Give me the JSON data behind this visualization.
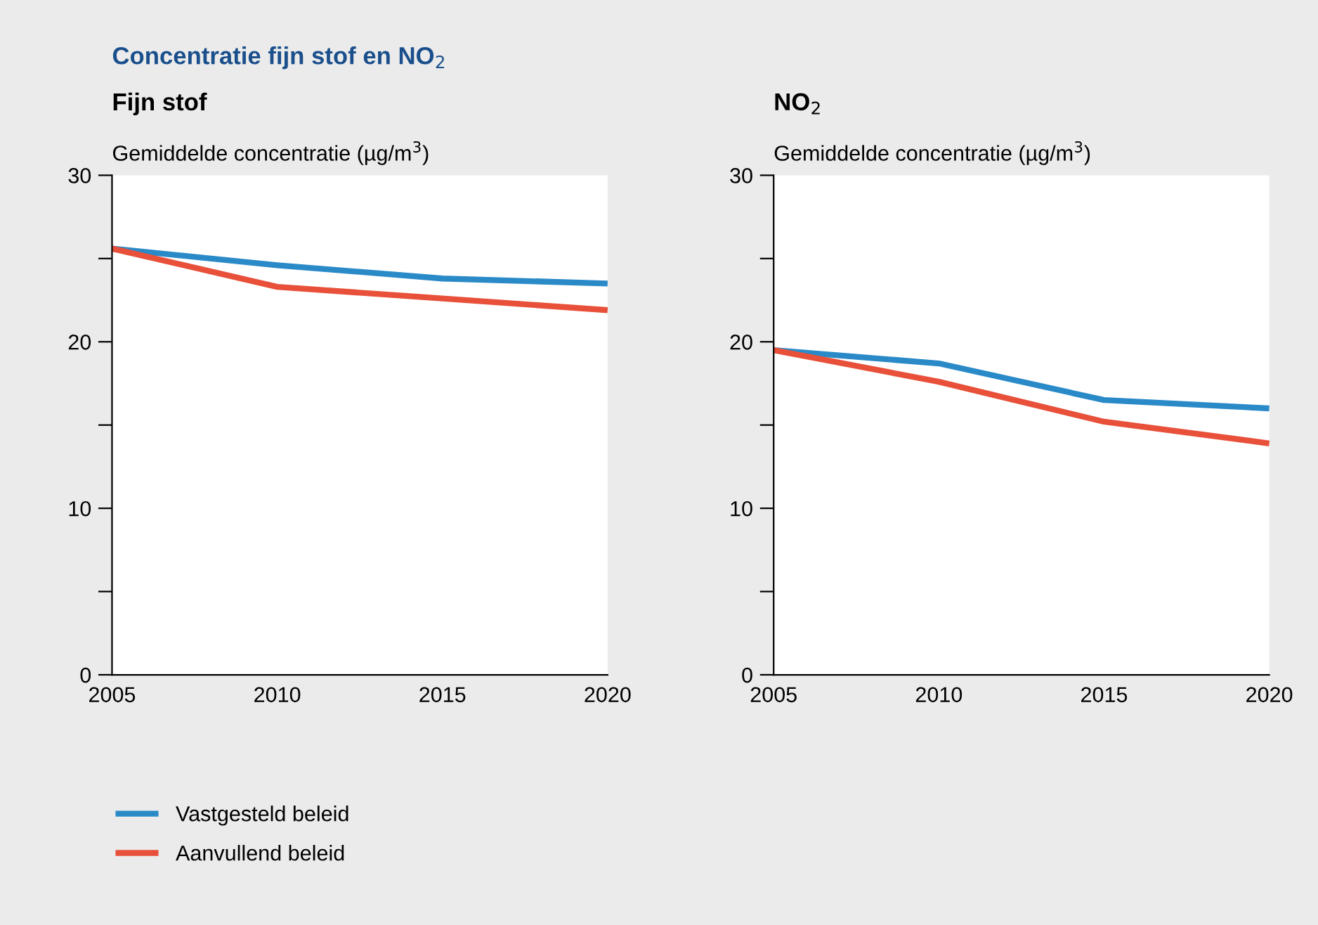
{
  "chart_data": [
    {
      "type": "line",
      "title": "Concentratie fijn stof en NO$_{2}$",
      "subtitle": "Fijn stof",
      "ylabel": "Gemiddelde concentratie (µg/m$^{3}$)",
      "x": [
        2005,
        2010,
        2015,
        2020
      ],
      "series": [
        {
          "name": "Vastgesteld beleid",
          "color": "#2a8ac8",
          "values": [
            25.6,
            24.6,
            23.8,
            23.5
          ]
        },
        {
          "name": "Aanvullend beleid",
          "color": "#e8503a",
          "values": [
            25.6,
            23.3,
            22.6,
            21.9
          ]
        }
      ],
      "xlim": [
        2005,
        2020
      ],
      "xticks": [
        2005,
        2010,
        2015,
        2020
      ],
      "ylim": [
        0,
        30
      ],
      "yticks": [
        0,
        {
          "value": 5,
          "label": null
        },
        10,
        {
          "value": 15,
          "label": null
        },
        20,
        {
          "value": 25,
          "label": null
        },
        30
      ],
      "grid": false,
      "legend": "bottom",
      "marker": "none",
      "line_style": "solid"
    },
    {
      "type": "line",
      "subtitle": "NO$_{2}$",
      "ylabel": "Gemiddelde concentratie (µg/m$^{3}$)",
      "x": [
        2005,
        2010,
        2015,
        2020
      ],
      "series": [
        {
          "color": "#2a8ac8",
          "values": [
            19.5,
            18.7,
            16.5,
            16.0
          ]
        },
        {
          "color": "#e8503a",
          "values": [
            19.5,
            17.6,
            15.2,
            13.9
          ]
        }
      ],
      "xlim": [
        2005,
        2020
      ],
      "xticks": [
        2005,
        2010,
        2015,
        2020
      ],
      "ylim": [
        0,
        30
      ],
      "yticks": [
        0,
        {
          "value": 5,
          "label": null
        },
        10,
        {
          "value": 15,
          "label": null
        },
        20,
        {
          "value": 25,
          "label": null
        },
        30
      ],
      "grid": false,
      "legend": false,
      "marker": "none",
      "line_style": "solid"
    }
  ]
}
